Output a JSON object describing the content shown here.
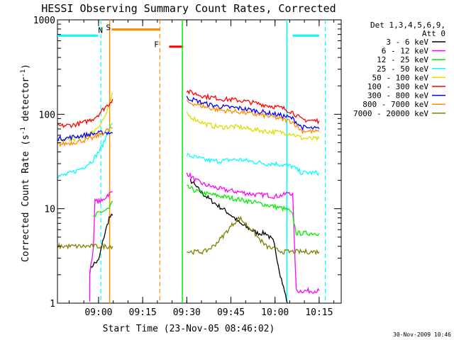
{
  "chart_data": {
    "type": "line",
    "title": "HESSI Observing Summary Count Rates, Corrected",
    "xlabel": "Start Time (23-Nov-05 08:46:02)",
    "ylabel": "Corrected Count Rate (s⁻¹ detector⁻¹)",
    "yscale": "log",
    "ylim": [
      1,
      1000
    ],
    "xlim": [
      8.7672,
      10.375
    ],
    "x_ticks": [
      {
        "value": 9.0,
        "label": "09:00"
      },
      {
        "value": 9.25,
        "label": "09:15"
      },
      {
        "value": 9.5,
        "label": "09:30"
      },
      {
        "value": 9.75,
        "label": "09:45"
      },
      {
        "value": 10.0,
        "label": "10:00"
      },
      {
        "value": 10.25,
        "label": "10:15"
      }
    ],
    "y_ticks": [
      {
        "value": 1,
        "label": "1"
      },
      {
        "value": 10,
        "label": "10"
      },
      {
        "value": 100,
        "label": "100"
      },
      {
        "value": 1000,
        "label": "1000"
      }
    ],
    "legend": {
      "position": "right",
      "header": [
        "Det 1,3,4,5,6,9,",
        "Att 0"
      ]
    },
    "series": [
      {
        "name": "3 - 6 keV",
        "color": "#000000",
        "points": [
          [
            8.95,
            2.2
          ],
          [
            8.97,
            2.6
          ],
          [
            9.0,
            2.8
          ],
          [
            9.03,
            5.0
          ],
          [
            9.06,
            8.0
          ],
          [
            9.08,
            8.5
          ],
          [
            null,
            null
          ],
          [
            9.52,
            20
          ],
          [
            9.58,
            15
          ],
          [
            9.62,
            13
          ],
          [
            9.67,
            11
          ],
          [
            9.72,
            9.5
          ],
          [
            9.77,
            8
          ],
          [
            9.8,
            7
          ],
          [
            9.85,
            6.2
          ],
          [
            9.9,
            5.5
          ],
          [
            9.95,
            5.5
          ],
          [
            9.99,
            4.5
          ],
          [
            10.0,
            3.8
          ],
          [
            10.03,
            2.0
          ],
          [
            10.06,
            1.2
          ],
          [
            10.07,
            1.0
          ]
        ]
      },
      {
        "name": "6 - 12 keV",
        "color": "#ff00ff",
        "points": [
          [
            8.95,
            1.0
          ],
          [
            8.95,
            2.0
          ],
          [
            8.97,
            3.8
          ],
          [
            8.98,
            12
          ],
          [
            9.02,
            12
          ],
          [
            9.05,
            14
          ],
          [
            9.08,
            15
          ],
          [
            null,
            null
          ],
          [
            9.5,
            24
          ],
          [
            9.55,
            20
          ],
          [
            9.6,
            18
          ],
          [
            9.65,
            17
          ],
          [
            9.7,
            16
          ],
          [
            9.75,
            15.5
          ],
          [
            9.8,
            15
          ],
          [
            9.85,
            14.5
          ],
          [
            9.9,
            14
          ],
          [
            9.95,
            14
          ],
          [
            10.0,
            13.5
          ],
          [
            10.05,
            14
          ],
          [
            10.08,
            15
          ],
          [
            10.1,
            14
          ],
          [
            10.12,
            1.35
          ],
          [
            10.2,
            1.35
          ],
          [
            10.25,
            1.35
          ]
        ]
      },
      {
        "name": "12 - 25 keV",
        "color": "#00ee00",
        "points": [
          [
            8.97,
            8.0
          ],
          [
            9.0,
            9.0
          ],
          [
            9.03,
            9.5
          ],
          [
            9.06,
            10
          ],
          [
            9.08,
            12
          ],
          [
            null,
            null
          ],
          [
            9.5,
            17
          ],
          [
            9.55,
            15.5
          ],
          [
            9.6,
            14.5
          ],
          [
            9.65,
            14
          ],
          [
            9.7,
            13.5
          ],
          [
            9.75,
            13
          ],
          [
            9.8,
            12.5
          ],
          [
            9.85,
            12
          ],
          [
            9.9,
            11.5
          ],
          [
            9.95,
            11
          ],
          [
            10.0,
            10.5
          ],
          [
            10.05,
            10
          ],
          [
            10.08,
            9.5
          ],
          [
            10.1,
            8.5
          ],
          [
            10.12,
            5.5
          ],
          [
            10.2,
            5.5
          ],
          [
            10.25,
            5.5
          ]
        ]
      },
      {
        "name": "25 - 50 keV",
        "color": "#00ffff",
        "points": [
          [
            8.77,
            22
          ],
          [
            8.82,
            23
          ],
          [
            8.87,
            25
          ],
          [
            8.92,
            28
          ],
          [
            8.97,
            33
          ],
          [
            9.0,
            40
          ],
          [
            9.03,
            50
          ],
          [
            9.06,
            70
          ],
          [
            9.08,
            80
          ],
          [
            null,
            null
          ],
          [
            9.5,
            37
          ],
          [
            9.55,
            35
          ],
          [
            9.6,
            33
          ],
          [
            9.65,
            32
          ],
          [
            9.7,
            32
          ],
          [
            9.75,
            33
          ],
          [
            9.8,
            33
          ],
          [
            9.85,
            32
          ],
          [
            9.9,
            31
          ],
          [
            9.95,
            30
          ],
          [
            10.0,
            30
          ],
          [
            10.05,
            29
          ],
          [
            10.1,
            28
          ],
          [
            10.15,
            24
          ],
          [
            10.2,
            24
          ],
          [
            10.25,
            24
          ]
        ]
      },
      {
        "name": "50 - 100 keV",
        "color": "#dddd00",
        "points": [
          [
            8.77,
            52
          ],
          [
            8.82,
            53
          ],
          [
            8.87,
            55
          ],
          [
            8.92,
            58
          ],
          [
            8.97,
            65
          ],
          [
            9.0,
            75
          ],
          [
            9.03,
            90
          ],
          [
            9.06,
            120
          ],
          [
            9.08,
            170
          ],
          [
            null,
            null
          ],
          [
            9.5,
            100
          ],
          [
            9.55,
            88
          ],
          [
            9.6,
            80
          ],
          [
            9.65,
            75
          ],
          [
            9.7,
            73
          ],
          [
            9.75,
            74
          ],
          [
            9.8,
            73
          ],
          [
            9.85,
            70
          ],
          [
            9.9,
            68
          ],
          [
            9.95,
            66
          ],
          [
            10.0,
            65
          ],
          [
            10.05,
            64
          ],
          [
            10.1,
            62
          ],
          [
            10.15,
            56
          ],
          [
            10.2,
            55
          ],
          [
            10.25,
            55
          ]
        ]
      },
      {
        "name": "100 - 300 keV",
        "color": "#ff0000",
        "points": [
          [
            8.77,
            75
          ],
          [
            8.82,
            76
          ],
          [
            8.87,
            78
          ],
          [
            8.92,
            82
          ],
          [
            8.97,
            90
          ],
          [
            9.0,
            100
          ],
          [
            9.03,
            115
          ],
          [
            9.06,
            130
          ],
          [
            9.08,
            145
          ],
          [
            null,
            null
          ],
          [
            9.5,
            175
          ],
          [
            9.55,
            165
          ],
          [
            9.6,
            155
          ],
          [
            9.65,
            150
          ],
          [
            9.7,
            145
          ],
          [
            9.75,
            143
          ],
          [
            9.8,
            140
          ],
          [
            9.85,
            135
          ],
          [
            9.9,
            130
          ],
          [
            9.95,
            125
          ],
          [
            10.0,
            120
          ],
          [
            10.05,
            115
          ],
          [
            10.1,
            105
          ],
          [
            10.15,
            88
          ],
          [
            10.2,
            86
          ],
          [
            10.25,
            85
          ]
        ]
      },
      {
        "name": "300 - 800 keV",
        "color": "#0000ff",
        "points": [
          [
            8.77,
            55
          ],
          [
            8.82,
            56
          ],
          [
            8.87,
            58
          ],
          [
            8.92,
            60
          ],
          [
            8.97,
            62
          ],
          [
            9.0,
            63
          ],
          [
            9.03,
            64
          ],
          [
            9.06,
            64
          ],
          [
            9.08,
            63
          ],
          [
            null,
            null
          ],
          [
            9.5,
            150
          ],
          [
            9.55,
            140
          ],
          [
            9.6,
            130
          ],
          [
            9.65,
            124
          ],
          [
            9.7,
            120
          ],
          [
            9.75,
            118
          ],
          [
            9.8,
            116
          ],
          [
            9.85,
            112
          ],
          [
            9.9,
            108
          ],
          [
            9.95,
            104
          ],
          [
            10.0,
            100
          ],
          [
            10.05,
            96
          ],
          [
            10.1,
            90
          ],
          [
            10.15,
            73
          ],
          [
            10.2,
            71
          ],
          [
            10.25,
            70
          ]
        ]
      },
      {
        "name": "800 - 7000 keV",
        "color": "#ff8c00",
        "points": [
          [
            8.77,
            48
          ],
          [
            8.82,
            49
          ],
          [
            8.87,
            51
          ],
          [
            8.92,
            53
          ],
          [
            8.97,
            56
          ],
          [
            9.0,
            60
          ],
          [
            9.03,
            64
          ],
          [
            9.06,
            70
          ],
          [
            9.08,
            72
          ],
          [
            null,
            null
          ],
          [
            9.5,
            135
          ],
          [
            9.55,
            128
          ],
          [
            9.6,
            120
          ],
          [
            9.65,
            114
          ],
          [
            9.7,
            110
          ],
          [
            9.75,
            108
          ],
          [
            9.8,
            106
          ],
          [
            9.85,
            102
          ],
          [
            9.9,
            99
          ],
          [
            9.95,
            96
          ],
          [
            10.0,
            92
          ],
          [
            10.05,
            88
          ],
          [
            10.1,
            83
          ],
          [
            10.15,
            67
          ],
          [
            10.2,
            66
          ],
          [
            10.25,
            65
          ]
        ]
      },
      {
        "name": "7000 - 20000 keV",
        "color": "#808000",
        "points": [
          [
            8.77,
            4.0
          ],
          [
            8.82,
            4.0
          ],
          [
            8.87,
            4.0
          ],
          [
            8.92,
            4.0
          ],
          [
            8.97,
            4.0
          ],
          [
            9.0,
            4.0
          ],
          [
            9.03,
            4.0
          ],
          [
            9.06,
            4.0
          ],
          [
            9.08,
            4.0
          ],
          [
            null,
            null
          ],
          [
            9.5,
            3.5
          ],
          [
            9.55,
            3.5
          ],
          [
            9.6,
            3.5
          ],
          [
            9.65,
            4.0
          ],
          [
            9.7,
            5.0
          ],
          [
            9.75,
            6.5
          ],
          [
            9.78,
            7.5
          ],
          [
            9.8,
            8.0
          ],
          [
            9.83,
            7.0
          ],
          [
            9.87,
            6.0
          ],
          [
            9.9,
            5.0
          ],
          [
            9.95,
            4.0
          ],
          [
            10.0,
            3.7
          ],
          [
            10.05,
            3.5
          ],
          [
            10.1,
            3.5
          ],
          [
            10.15,
            3.5
          ],
          [
            10.2,
            3.5
          ],
          [
            10.25,
            3.5
          ]
        ]
      }
    ],
    "markers": {
      "night_bars": [
        [
          8.7672,
          8.9978
        ],
        [
          10.1,
          10.25
        ]
      ],
      "saa_bar": [
        9.074,
        9.35
      ],
      "flare_bar": [
        9.4,
        9.48
      ],
      "labels": [
        {
          "text": "N",
          "x": 9.03,
          "y": 790,
          "color": "#00ffff"
        },
        {
          "text": "S",
          "x": 9.074,
          "y": 850,
          "color": "#ff8c00"
        },
        {
          "text": "F",
          "x": 9.347,
          "y": 560,
          "color": "#ff8c00"
        }
      ],
      "vlines_solid": [
        {
          "x": 9.063,
          "color": "#ff8c00"
        },
        {
          "x": 9.475,
          "color": "#00ee00"
        },
        {
          "x": 10.067,
          "color": "#00ffff"
        }
      ],
      "vlines_dashed": [
        {
          "x": 9.013,
          "color": "#00ffff"
        },
        {
          "x": 9.347,
          "color": "#ff8c00"
        },
        {
          "x": 10.285,
          "color": "#00ffff"
        }
      ]
    },
    "footer_stamp": "30-Nov-2009 10:46"
  }
}
